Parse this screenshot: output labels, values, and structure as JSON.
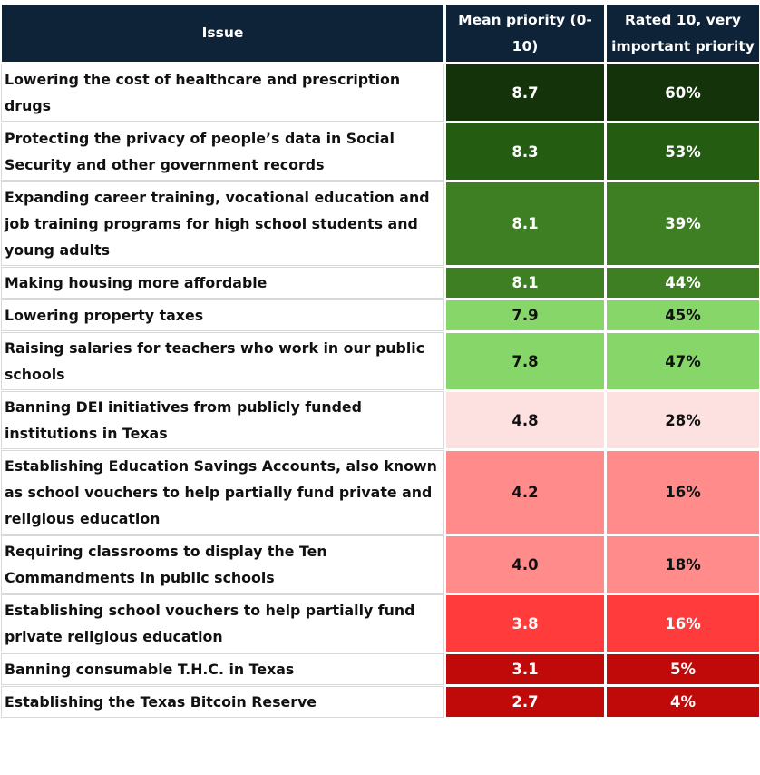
{
  "header": {
    "issue": "Issue",
    "mean": "Mean priority (0-10)",
    "rated10": "Rated 10, very important priority"
  },
  "chart_data": {
    "type": "table",
    "columns": [
      "Issue",
      "Mean priority (0-10)",
      "Rated 10, very important priority"
    ],
    "rows": [
      {
        "issue": "Lowering the cost of healthcare and prescription drugs",
        "mean": "8.7",
        "rated10": "60%",
        "bg": "#15330a",
        "fg": "#ffffff"
      },
      {
        "issue": "Protecting the privacy of people’s data in Social Security and other government records",
        "mean": "8.3",
        "rated10": "53%",
        "bg": "#245c12",
        "fg": "#ffffff"
      },
      {
        "issue": "Expanding career training, vocational education and job training programs for high school students and young adults",
        "mean": "8.1",
        "rated10": "39%",
        "bg": "#3d7f22",
        "fg": "#ffffff"
      },
      {
        "issue": "Making housing more affordable",
        "mean": "8.1",
        "rated10": "44%",
        "bg": "#3d7f22",
        "fg": "#ffffff"
      },
      {
        "issue": "Lowering property taxes",
        "mean": "7.9",
        "rated10": "45%",
        "bg": "#86d669",
        "fg": "#111111"
      },
      {
        "issue": "Raising salaries for teachers who work in our public schools",
        "mean": "7.8",
        "rated10": "47%",
        "bg": "#86d669",
        "fg": "#111111"
      },
      {
        "issue": "Banning DEI initiatives from publicly funded institutions in Texas",
        "mean": "4.8",
        "rated10": "28%",
        "bg": "#fde1e1",
        "fg": "#111111"
      },
      {
        "issue": "Establishing Education Savings Accounts, also known as school vouchers to help partially fund private and religious education",
        "mean": "4.2",
        "rated10": "16%",
        "bg": "#ff8b8b",
        "fg": "#111111"
      },
      {
        "issue": "Requiring classrooms to display the Ten Commandments in public schools",
        "mean": "4.0",
        "rated10": "18%",
        "bg": "#ff8b8b",
        "fg": "#111111"
      },
      {
        "issue": "Establishing school vouchers to help partially fund private religious education",
        "mean": "3.8",
        "rated10": "16%",
        "bg": "#ff3b3b",
        "fg": "#ffffff"
      },
      {
        "issue": "Banning consumable T.H.C. in Texas",
        "mean": "3.1",
        "rated10": "5%",
        "bg": "#c00a0a",
        "fg": "#ffffff"
      },
      {
        "issue": "Establishing the Texas Bitcoin Reserve",
        "mean": "2.7",
        "rated10": "4%",
        "bg": "#c00a0a",
        "fg": "#ffffff"
      }
    ]
  }
}
